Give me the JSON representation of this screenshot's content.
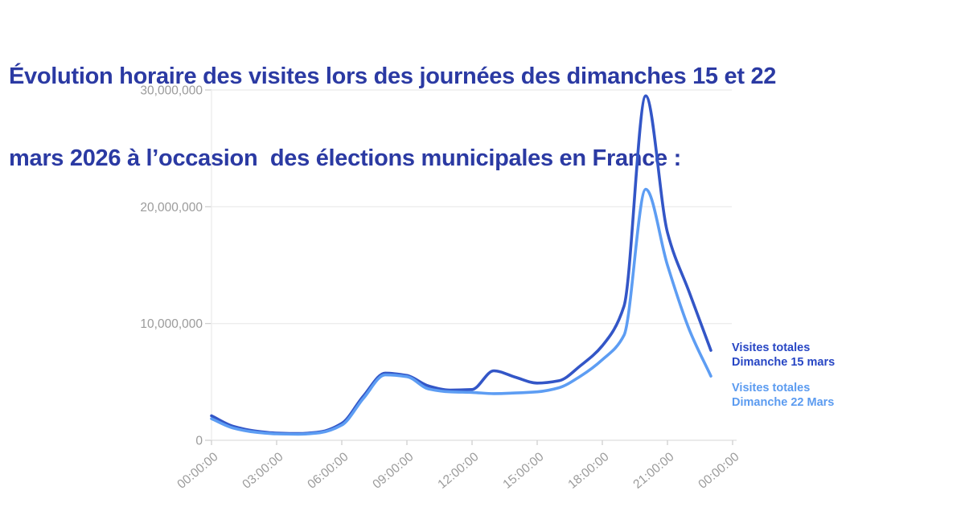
{
  "page": {
    "background_color": "#ffffff"
  },
  "title": {
    "line1": "Évolution horaire des visites lors des journées des dimanches 15 et 22",
    "line2": "mars 2026 à l’occasion  des élections municipales en France :",
    "color": "#2b3aa3"
  },
  "legend": [
    {
      "line1": "Visites totales",
      "line2": "Dimanche 15 mars",
      "color": "#2746c4"
    },
    {
      "line1": "Visites totales",
      "line2": "Dimanche 22 Mars",
      "color": "#5b9bf0"
    }
  ],
  "axis_style": {
    "label_color": "#9b9b9b",
    "gridline_color": "#ededed",
    "axis_line_color": "#e3e3e3",
    "tick_color": "#cccccc"
  },
  "chart_data": {
    "type": "line",
    "title": "Évolution horaire des visites — dimanches 15 et 22 mars 2026 (élections municipales, France)",
    "xlabel": "",
    "ylabel": "",
    "x_unit": "hour_of_day",
    "x": [
      0,
      1,
      2,
      3,
      4,
      5,
      6,
      7,
      8,
      9,
      10,
      11,
      12,
      13,
      14,
      15,
      16,
      17,
      18,
      19,
      20,
      21,
      22,
      23
    ],
    "x_tick_hours": [
      0,
      3,
      6,
      9,
      12,
      15,
      18,
      21,
      24
    ],
    "x_tick_labels": [
      "00:00:00",
      "03:00:00",
      "06:00:00",
      "09:00:00",
      "12:00:00",
      "15:00:00",
      "18:00:00",
      "21:00:00",
      "00:00:00"
    ],
    "y_ticks": [
      0,
      10000000,
      20000000,
      30000000
    ],
    "y_tick_labels": [
      "0",
      "10,000,000",
      "20,000,000",
      "30,000,000"
    ],
    "ylim": [
      0,
      30000000
    ],
    "xlim_hours": [
      0,
      24
    ],
    "grid": "horizontal",
    "legend_position": "right-of-line-ends",
    "series": [
      {
        "name": "Visites totales Dimanche 15 mars",
        "color": "#3356c7",
        "values": [
          2100000,
          1200000,
          800000,
          620000,
          580000,
          720000,
          1450000,
          3800000,
          5750000,
          5550000,
          4650000,
          4300000,
          4350000,
          5950000,
          5400000,
          4900000,
          5100000,
          6400000,
          8100000,
          11500000,
          29500000,
          17800000,
          12700000,
          7700000
        ]
      },
      {
        "name": "Visites totales Dimanche 22 Mars",
        "color": "#5d9df3",
        "values": [
          1850000,
          1050000,
          700000,
          550000,
          520000,
          650000,
          1300000,
          3600000,
          5600000,
          5450000,
          4400000,
          4150000,
          4100000,
          4000000,
          4050000,
          4150000,
          4500000,
          5500000,
          6900000,
          9000000,
          21500000,
          15000000,
          9500000,
          5500000
        ]
      }
    ]
  }
}
